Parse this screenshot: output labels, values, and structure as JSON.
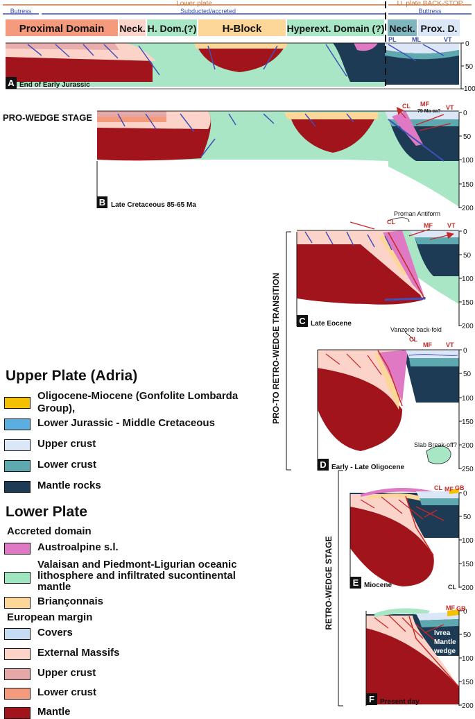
{
  "header": {
    "lower_plate": "Lower plate",
    "upper_plate": "U. plate BACK-STOP",
    "butress_left": "Butress",
    "subducted": "Subducted/accreted",
    "butress_right": "Buttress"
  },
  "domains": [
    "Proximal Domain",
    "Neck.",
    "H. Dom.(?)",
    "H-Block",
    "Hyperext. Domain (?)",
    "Neck.",
    "Prox. D."
  ],
  "stages": {
    "pro_wedge": "PRO-WEDGE STAGE",
    "transition": "PRO-TO RETRO-WEDGE TRANSITION",
    "retro_wedge": "RETRO-WEDGE STAGE"
  },
  "panels": {
    "a": {
      "letter": "A",
      "label": "End of Early Jurassic",
      "ticks": [
        "0",
        "50",
        "100"
      ],
      "marks": [
        "PL",
        "ML",
        "VT"
      ]
    },
    "b": {
      "letter": "B",
      "label": "Late Cretaceous 85-65 Ma",
      "ticks": [
        "0",
        "50",
        "100",
        "150",
        "200"
      ],
      "marks": [
        "CL",
        "MF",
        "79 Ma ca?",
        "VT"
      ]
    },
    "c": {
      "letter": "C",
      "label": "Late Eocene",
      "ticks": [
        "0",
        "50",
        "100",
        "150",
        "200"
      ],
      "marks": [
        "Proman Antiform",
        "CL",
        "MF",
        "VT"
      ]
    },
    "d": {
      "letter": "D",
      "label": "Early - Late Oligocene",
      "ticks": [
        "0",
        "50",
        "100",
        "150",
        "200",
        "250"
      ],
      "marks": [
        "Vanzone back-fold",
        "CL",
        "MF",
        "VT",
        "Slab Break-off?"
      ]
    },
    "e": {
      "letter": "E",
      "label": "Miocene",
      "ticks": [
        "0",
        "50",
        "100",
        "150",
        "200"
      ],
      "marks": [
        "CL",
        "MF",
        "GB",
        "CL"
      ]
    },
    "f": {
      "letter": "F",
      "label": "Present day",
      "ticks": [
        "0",
        "50",
        "100",
        "150",
        "200"
      ],
      "marks": [
        "MF",
        "GB",
        "Ivrea",
        "Mantle",
        "wedge"
      ]
    }
  },
  "legend": {
    "upper_title": "Upper Plate (Adria)",
    "upper_items": [
      {
        "label": "Oligocene-Miocene (Gonfolite Lombarda Group),",
        "color": "#f5c000"
      },
      {
        "label": "Lower Jurassic  - Middle Cretaceous",
        "color": "#5aaee0"
      },
      {
        "label": "Upper crust",
        "color": "#dbe7f7"
      },
      {
        "label": "Lower crust",
        "color": "#5ea8b0"
      },
      {
        "label": "Mantle rocks",
        "color": "#1d3b55"
      }
    ],
    "lower_title": "Lower Plate",
    "accreted_title": "Accreted domain",
    "accreted_items": [
      {
        "label": "Austroalpine s.l.",
        "color": "#e079c4"
      },
      {
        "label": "Valaisan and Piedmont-Ligurian oceanic lithosphere and infiltrated sucontinental mantle",
        "color": "#9fe6c0"
      },
      {
        "label": "Briançonnais",
        "color": "#fdd79a"
      }
    ],
    "european_title": "European margin",
    "european_items": [
      {
        "label": "Covers",
        "color": "#c5dcf2"
      },
      {
        "label": "External Massifs",
        "color": "#fcd3c9"
      },
      {
        "label": "Upper crust",
        "color": "#e5a8a8"
      },
      {
        "label": "Lower crust",
        "color": "#f49b7e"
      },
      {
        "label": "Mantle",
        "color": "#a2141c"
      }
    ]
  }
}
